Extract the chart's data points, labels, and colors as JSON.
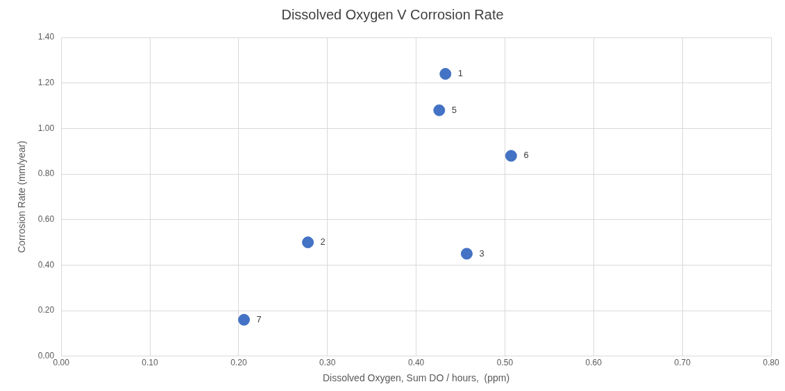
{
  "chart_data": {
    "type": "scatter",
    "title": "Dissolved Oxygen V Corrosion Rate",
    "xlabel": "Dissolved Oxygen, Sum DO / hours,  (ppm)",
    "ylabel": "Corrosion Rate (mm/year)",
    "x": [
      0.433,
      0.278,
      0.457,
      0.426,
      0.507,
      0.206
    ],
    "values": [
      1.24,
      0.5,
      0.45,
      1.08,
      0.88,
      0.16
    ],
    "annotations": [
      {
        "text": "1",
        "x": 0.433,
        "y": 1.24
      },
      {
        "text": "2",
        "x": 0.278,
        "y": 0.5
      },
      {
        "text": "3",
        "x": 0.457,
        "y": 0.45
      },
      {
        "text": "5",
        "x": 0.426,
        "y": 1.08
      },
      {
        "text": "6",
        "x": 0.507,
        "y": 0.88
      },
      {
        "text": "7",
        "x": 0.206,
        "y": 0.16
      }
    ],
    "color": "#4472c4",
    "marker": "circle",
    "grid": true,
    "legend": false,
    "xlim": [
      0,
      0.8
    ],
    "xticks": [
      {
        "value": 0,
        "label": "0.00"
      },
      {
        "value": 0.1,
        "label": "0.10"
      },
      {
        "value": 0.2,
        "label": "0.20"
      },
      {
        "value": 0.3,
        "label": "0.30"
      },
      {
        "value": 0.4,
        "label": "0.40"
      },
      {
        "value": 0.5,
        "label": "0.50"
      },
      {
        "value": 0.6,
        "label": "0.60"
      },
      {
        "value": 0.7,
        "label": "0.70"
      },
      {
        "value": 0.8,
        "label": "0.80"
      }
    ],
    "ylim": [
      0,
      1.4
    ],
    "yticks": [
      {
        "value": 0,
        "label": "0.00"
      },
      {
        "value": 0.2,
        "label": "0.20"
      },
      {
        "value": 0.4,
        "label": "0.40"
      },
      {
        "value": 0.6,
        "label": "0.60"
      },
      {
        "value": 0.8,
        "label": "0.80"
      },
      {
        "value": 1,
        "label": "1.00"
      },
      {
        "value": 1.2,
        "label": "1.20"
      },
      {
        "value": 1.4,
        "label": "1.40"
      }
    ]
  }
}
